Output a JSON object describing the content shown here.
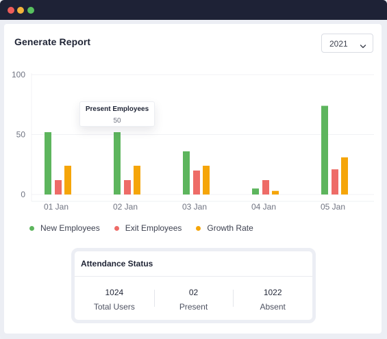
{
  "report": {
    "title": "Generate Report",
    "year": "2021"
  },
  "colors": {
    "new": "#5db55d",
    "exit": "#ee6b67",
    "growth": "#f5a509",
    "titlebar": "#1e2236"
  },
  "tooltip": {
    "title": "Present Employees",
    "value": "50"
  },
  "chart_data": {
    "type": "bar",
    "categories": [
      "01 Jan",
      "02 Jan",
      "03 Jan",
      "04 Jan",
      "05 Jan"
    ],
    "y_ticks": [
      "100",
      "50",
      "0"
    ],
    "ylim": [
      0,
      100
    ],
    "grid": true,
    "legend_position": "bottom-left",
    "series": [
      {
        "name": "New Employees",
        "values": [
          52,
          52,
          36,
          5,
          74
        ]
      },
      {
        "name": "Exit Employees",
        "values": [
          12,
          12,
          20,
          12,
          21
        ]
      },
      {
        "name": "Growth Rate",
        "values": [
          24,
          24,
          24,
          3,
          31
        ]
      }
    ]
  },
  "attendance": {
    "title": "Attendance Status",
    "stats": [
      {
        "value": "1024",
        "label": "Total Users"
      },
      {
        "value": "02",
        "label": "Present"
      },
      {
        "value": "1022",
        "label": "Absent"
      }
    ]
  }
}
